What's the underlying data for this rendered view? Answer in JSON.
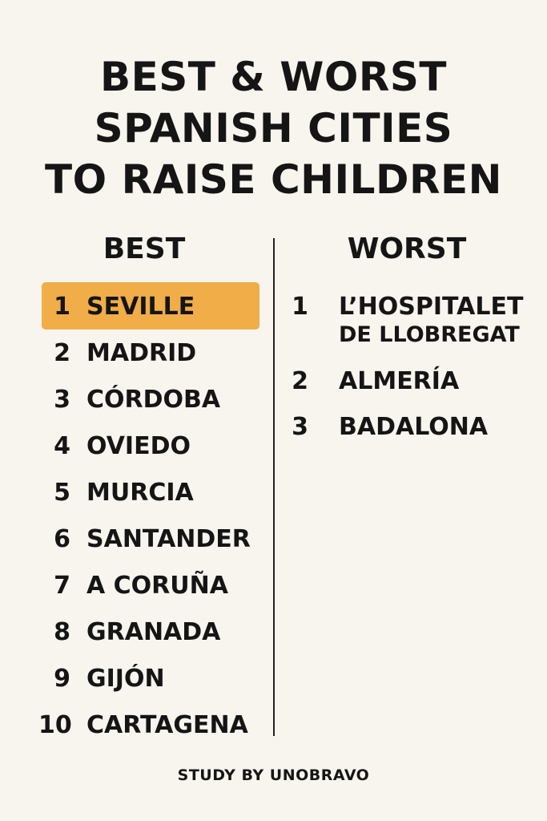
{
  "title": [
    "BEST & WORST",
    "SPANISH CITIES",
    "TO RAISE CHILDREN"
  ],
  "best": {
    "heading": "BEST",
    "items": [
      {
        "rank": "1",
        "city": "SEVILLE"
      },
      {
        "rank": "2",
        "city": "MADRID"
      },
      {
        "rank": "3",
        "city": "CÓRDOBA"
      },
      {
        "rank": "4",
        "city": "OVIEDO"
      },
      {
        "rank": "5",
        "city": "MURCIA"
      },
      {
        "rank": "6",
        "city": "SANTANDER"
      },
      {
        "rank": "7",
        "city": "A CORUÑA"
      },
      {
        "rank": "8",
        "city": "GRANADA"
      },
      {
        "rank": "9",
        "city": "GIJÓN"
      },
      {
        "rank": "10",
        "city": "CARTAGENA"
      }
    ]
  },
  "worst": {
    "heading": "WORST",
    "items": [
      {
        "rank": "1",
        "city": "L’HOSPITALET",
        "city_line2": "DE LLOBREGAT"
      },
      {
        "rank": "2",
        "city": "ALMERÍA"
      },
      {
        "rank": "3",
        "city": "BADALONA"
      }
    ]
  },
  "footer": "STUDY BY UNOBRAVO",
  "colors": {
    "highlight": "#f0ad48",
    "background": "#f8f5ee",
    "text": "#151515"
  }
}
